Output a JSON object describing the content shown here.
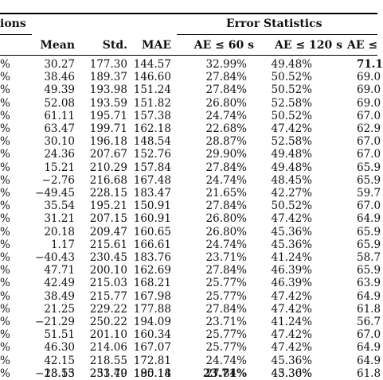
{
  "header": {
    "group_left": "ions",
    "group_right": "Error Statistics",
    "columns": [
      "Mean",
      "Std.",
      "MAE",
      "AE ≤ 60 s",
      "AE ≤ 120 s",
      "AE ≤"
    ]
  },
  "rows": [
    {
      "lead": "%",
      "mean": "30.27",
      "std": "177.30",
      "mae": "144.57",
      "ae60": "32.99%",
      "ae120": "49.48%",
      "ae_last": "71.1"
    },
    {
      "lead": "%",
      "mean": "38.46",
      "std": "189.37",
      "mae": "146.60",
      "ae60": "27.84%",
      "ae120": "50.52%",
      "ae_last": "69.0"
    },
    {
      "lead": "%",
      "mean": "49.39",
      "std": "193.98",
      "mae": "151.24",
      "ae60": "27.84%",
      "ae120": "50.52%",
      "ae_last": "69.0"
    },
    {
      "lead": "%",
      "mean": "52.08",
      "std": "193.59",
      "mae": "151.82",
      "ae60": "26.80%",
      "ae120": "52.58%",
      "ae_last": "69.0"
    },
    {
      "lead": "%",
      "mean": "61.11",
      "std": "195.71",
      "mae": "157.38",
      "ae60": "24.74%",
      "ae120": "50.52%",
      "ae_last": "67.0"
    },
    {
      "lead": "%",
      "mean": "63.47",
      "std": "199.71",
      "mae": "162.18",
      "ae60": "22.68%",
      "ae120": "47.42%",
      "ae_last": "62.9"
    },
    {
      "lead": "%",
      "mean": "30.10",
      "std": "196.18",
      "mae": "148.54",
      "ae60": "28.87%",
      "ae120": "52.58%",
      "ae_last": "67.0"
    },
    {
      "lead": "%",
      "mean": "24.36",
      "std": "207.67",
      "mae": "152.76",
      "ae60": "29.90%",
      "ae120": "49.48%",
      "ae_last": "67.0"
    },
    {
      "lead": "%",
      "mean": "15.21",
      "std": "210.29",
      "mae": "157.84",
      "ae60": "27.84%",
      "ae120": "49.48%",
      "ae_last": "65.9"
    },
    {
      "lead": "%",
      "mean": "−2.76",
      "std": "216.68",
      "mae": "167.48",
      "ae60": "24.74%",
      "ae120": "48.45%",
      "ae_last": "65.9"
    },
    {
      "lead": "%",
      "mean": "−49.45",
      "std": "228.15",
      "mae": "183.47",
      "ae60": "21.65%",
      "ae120": "42.27%",
      "ae_last": "59.7"
    },
    {
      "lead": "%",
      "mean": "35.54",
      "std": "195.21",
      "mae": "150.91",
      "ae60": "27.84%",
      "ae120": "50.52%",
      "ae_last": "67.0"
    },
    {
      "lead": "%",
      "mean": "31.21",
      "std": "207.15",
      "mae": "160.91",
      "ae60": "26.80%",
      "ae120": "47.42%",
      "ae_last": "64.9"
    },
    {
      "lead": "%",
      "mean": "20.18",
      "std": "209.47",
      "mae": "160.65",
      "ae60": "26.80%",
      "ae120": "45.36%",
      "ae_last": "65.9"
    },
    {
      "lead": "%",
      "mean": "1.17",
      "std": "215.61",
      "mae": "166.61",
      "ae60": "24.74%",
      "ae120": "45.36%",
      "ae_last": "65.9"
    },
    {
      "lead": "%",
      "mean": "−40.43",
      "std": "230.45",
      "mae": "183.76",
      "ae60": "23.71%",
      "ae120": "41.24%",
      "ae_last": "58.7"
    },
    {
      "lead": "%",
      "mean": "47.71",
      "std": "200.10",
      "mae": "162.69",
      "ae60": "27.84%",
      "ae120": "46.39%",
      "ae_last": "65.9"
    },
    {
      "lead": "%",
      "mean": "42.49",
      "std": "215.03",
      "mae": "168.21",
      "ae60": "25.77%",
      "ae120": "46.39%",
      "ae_last": "63.9"
    },
    {
      "lead": "%",
      "mean": "38.49",
      "std": "215.77",
      "mae": "167.98",
      "ae60": "25.77%",
      "ae120": "47.42%",
      "ae_last": "64.9"
    },
    {
      "lead": "%",
      "mean": "21.25",
      "std": "229.22",
      "mae": "177.88",
      "ae60": "27.84%",
      "ae120": "47.42%",
      "ae_last": "61.8"
    },
    {
      "lead": "%",
      "mean": "−21.29",
      "std": "250.22",
      "mae": "194.09",
      "ae60": "23.71%",
      "ae120": "41.24%",
      "ae_last": "56.7"
    },
    {
      "lead": "%",
      "mean": "51.51",
      "std": "201.10",
      "mae": "160.34",
      "ae60": "25.77%",
      "ae120": "47.42%",
      "ae_last": "67.0"
    },
    {
      "lead": "%",
      "mean": "46.30",
      "std": "214.06",
      "mae": "167.07",
      "ae60": "25.77%",
      "ae120": "47.42%",
      "ae_last": "64.9"
    },
    {
      "lead": "%",
      "mean": "42.15",
      "std": "218.55",
      "mae": "172.81",
      "ae60": "24.74%",
      "ae120": "45.36%",
      "ae_last": "64.9"
    },
    {
      "lead": "%",
      "mean": "23.53",
      "std": "233.40",
      "mae": "180.14",
      "ae60": "27.84%",
      "ae120": "45.36%",
      "ae_last": "61.8"
    }
  ],
  "partial_row": {
    "mean": "−18.15",
    "std": "251.79",
    "mae": "195.18",
    "ae60": "23.71%",
    "ae120": "43.30%"
  }
}
